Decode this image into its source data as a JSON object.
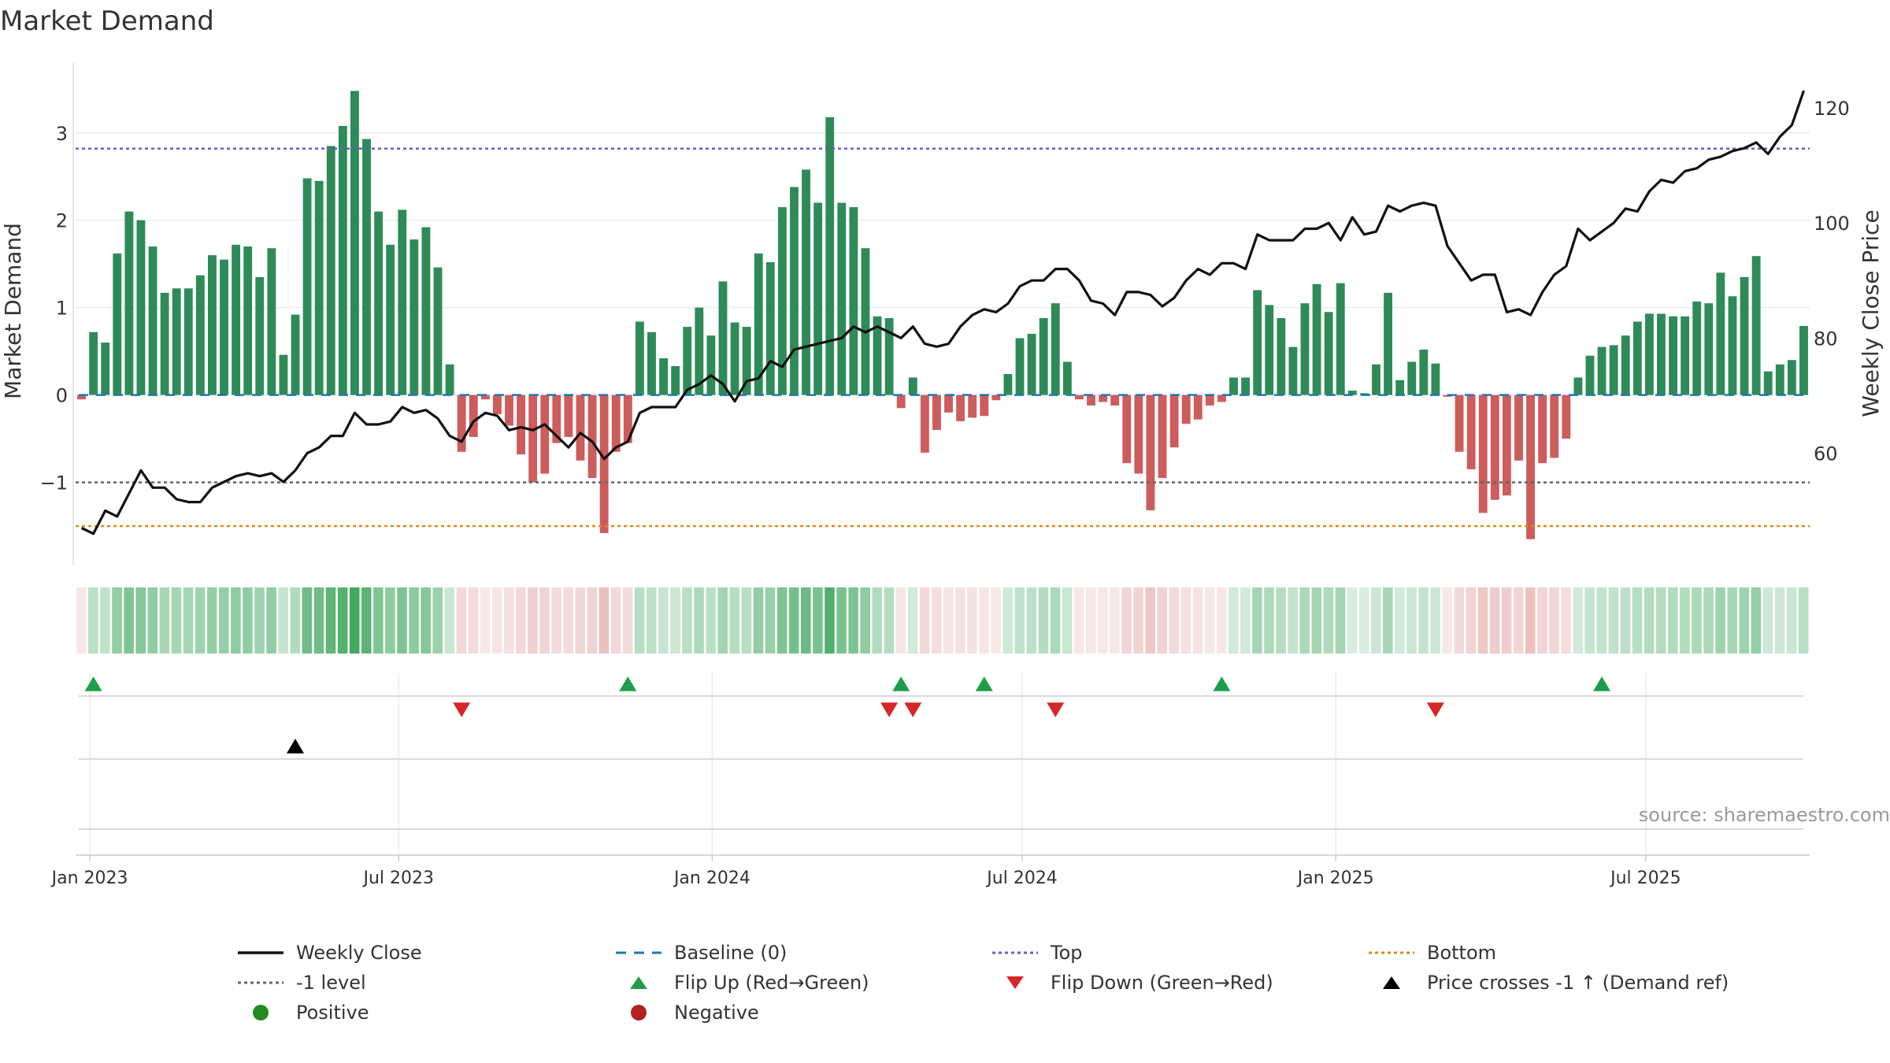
{
  "chart_data": {
    "type": "bar",
    "title": "Market Demand",
    "ylabel_left": "Market Demand",
    "ylabel_right": "Weekly Close Price",
    "ylim_left": [
      -1.95,
      3.8
    ],
    "ylim_right": [
      40.5,
      127.8
    ],
    "yticks_left": [
      3,
      2,
      1,
      0,
      -1
    ],
    "ytick_labels_left": [
      "3",
      "2",
      "1",
      "0",
      "−1"
    ],
    "yticks_right": [
      120,
      100,
      80,
      60
    ],
    "ytick_labels_right": [
      "120",
      "100",
      "80",
      "60"
    ],
    "xticks": [
      "Jan 2023",
      "Jul 2023",
      "Jan 2024",
      "Jul 2024",
      "Jan 2025",
      "Jul 2025"
    ],
    "xtick_weeks": [
      0.7,
      26.7,
      53.1,
      79.2,
      105.6,
      131.7
    ],
    "reference_lines": {
      "top": 2.82,
      "bottom": -1.5,
      "minus_one": -1,
      "baseline": 0
    },
    "demand": [
      -0.05,
      0.72,
      0.6,
      1.62,
      2.1,
      2.0,
      1.7,
      1.17,
      1.22,
      1.22,
      1.37,
      1.6,
      1.55,
      1.72,
      1.7,
      1.35,
      1.68,
      0.46,
      0.92,
      2.48,
      2.45,
      2.85,
      3.08,
      3.48,
      2.93,
      2.1,
      1.72,
      2.12,
      1.78,
      1.92,
      1.46,
      0.35,
      -0.65,
      -0.48,
      -0.05,
      -0.22,
      -0.35,
      -0.68,
      -1.0,
      -0.9,
      -0.55,
      -0.48,
      -0.75,
      -0.95,
      -1.58,
      -0.65,
      -0.55,
      0.84,
      0.72,
      0.42,
      0.33,
      0.78,
      1.0,
      0.68,
      1.3,
      0.83,
      0.78,
      1.62,
      1.52,
      2.15,
      2.38,
      2.58,
      2.2,
      3.18,
      2.2,
      2.15,
      1.68,
      0.9,
      0.88,
      -0.15,
      0.2,
      -0.66,
      -0.4,
      -0.2,
      -0.3,
      -0.26,
      -0.24,
      -0.06,
      0.24,
      0.65,
      0.7,
      0.88,
      1.05,
      0.38,
      -0.05,
      -0.12,
      -0.08,
      -0.12,
      -0.78,
      -0.9,
      -1.32,
      -0.95,
      -0.6,
      -0.33,
      -0.28,
      -0.12,
      -0.08,
      0.2,
      0.2,
      1.2,
      1.03,
      0.88,
      0.55,
      1.05,
      1.27,
      0.95,
      1.28,
      0.05,
      0.02,
      0.35,
      1.17,
      0.17,
      0.38,
      0.52,
      0.36,
      -0.02,
      -0.65,
      -0.85,
      -1.35,
      -1.2,
      -1.15,
      -0.75,
      -1.65,
      -0.78,
      -0.72,
      -0.5,
      0.2,
      0.45,
      0.55,
      0.57,
      0.68,
      0.84,
      0.93,
      0.93,
      0.9,
      0.9,
      1.07,
      1.05,
      1.4,
      1.13,
      1.35,
      1.59,
      0.27,
      0.35,
      0.4,
      0.79
    ],
    "weekly_close": [
      47,
      46,
      50,
      49,
      53,
      57,
      54,
      54,
      52,
      51.5,
      51.5,
      54,
      55,
      56,
      56.5,
      56,
      56.5,
      55,
      57,
      60,
      61,
      63,
      63,
      67,
      65,
      65,
      65.5,
      68,
      67,
      67.5,
      66,
      63,
      62,
      65.5,
      67,
      66.5,
      64,
      64.5,
      64,
      65,
      63,
      61,
      63.5,
      62,
      59,
      61,
      62,
      67,
      68,
      68,
      68,
      71,
      72,
      73.5,
      72,
      69,
      72.5,
      73,
      76,
      75,
      78,
      78.5,
      79,
      79.5,
      80,
      82,
      81,
      82,
      81,
      80,
      82,
      79,
      78.5,
      79,
      82,
      84,
      85,
      84.5,
      86,
      89,
      90,
      90,
      92,
      92,
      90,
      86.5,
      86,
      84,
      88,
      88,
      87.5,
      85.5,
      87,
      90,
      92,
      91,
      93,
      93,
      92,
      98,
      97,
      97,
      97,
      99,
      99,
      100,
      97,
      101,
      98,
      98.5,
      103,
      102,
      103,
      103.5,
      103,
      96,
      93,
      90,
      91,
      91,
      84.5,
      85,
      84,
      88,
      91,
      92.5,
      99,
      97,
      98.5,
      100,
      102.5,
      102,
      105.5,
      107.5,
      107,
      109,
      109.5,
      111,
      111.5,
      112.5,
      113,
      114,
      112,
      115,
      117,
      123
    ],
    "heatmap": {
      "type": "heatmap",
      "description_values": "per-week demand intensity strip"
    },
    "events": {
      "flip_up_weeks": [
        1,
        46,
        69,
        76,
        96,
        128
      ],
      "flip_down_weeks": [
        32,
        68,
        70,
        82,
        114
      ],
      "price_cross_weeks": [
        18
      ]
    },
    "annotation": "source: sharemaestro.com",
    "colors": {
      "bar_positive": "#2e8b57",
      "bar_negative": "#cd5c5c",
      "close_line": "#111111",
      "baseline": "#1f77b4",
      "top_line": "#6a5acd",
      "bottom_line": "#e08a1a",
      "minus_one_line": "#666666",
      "flip_up": "#1e9e4a",
      "flip_down": "#d62728",
      "price_cross": "#000000",
      "positive_dot": "#228b22",
      "negative_dot": "#b22222"
    }
  },
  "legend": {
    "items": [
      {
        "label": "Weekly Close",
        "symbol": "solid-line",
        "color": "#111111"
      },
      {
        "label": "Baseline (0)",
        "symbol": "dashed-line",
        "color": "#1f77b4"
      },
      {
        "label": "Top",
        "symbol": "dotted-line",
        "color": "#6a5acd"
      },
      {
        "label": "Bottom",
        "symbol": "dotted-line",
        "color": "#e08a1a"
      },
      {
        "label": "-1 level",
        "symbol": "dotted-line",
        "color": "#666666"
      },
      {
        "label": "Flip Up (Red→Green)",
        "symbol": "triangle-up",
        "color": "#1e9e4a"
      },
      {
        "label": "Flip Down (Green→Red)",
        "symbol": "triangle-down",
        "color": "#d62728"
      },
      {
        "label": "Price crosses -1 ↑ (Demand ref)",
        "symbol": "triangle-up",
        "color": "#000000"
      },
      {
        "label": "Positive",
        "symbol": "circle",
        "color": "#228b22"
      },
      {
        "label": "Negative",
        "symbol": "circle",
        "color": "#b22222"
      }
    ]
  }
}
